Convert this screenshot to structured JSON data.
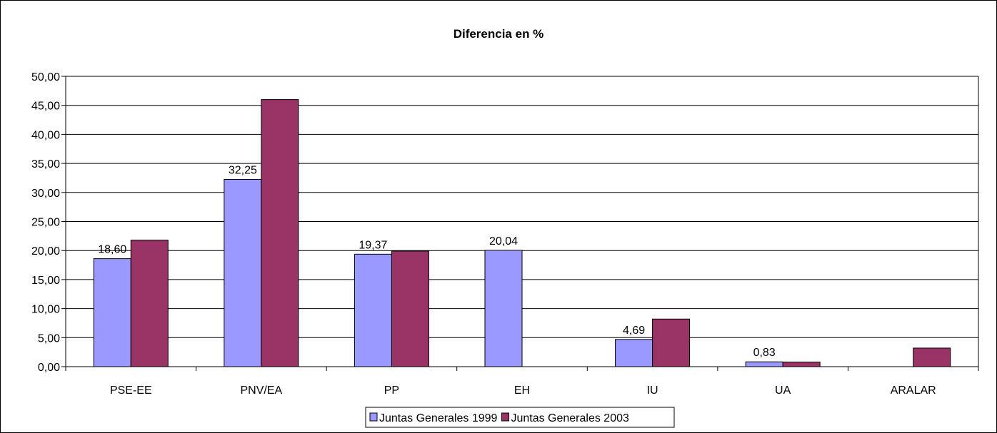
{
  "chart_data": {
    "type": "bar",
    "title": "Diferencia en %",
    "xlabel": "",
    "ylabel": "",
    "categories": [
      "PSE-EE",
      "PNV/EA",
      "PP",
      "EH",
      "IU",
      "UA",
      "ARALAR"
    ],
    "series": [
      {
        "name": "Juntas Generales 1999",
        "color": "#9999ff",
        "values": [
          18.6,
          32.25,
          19.37,
          20.04,
          4.69,
          0.83,
          null
        ],
        "labels": [
          "18,60",
          "32,25",
          "19,37",
          "20,04",
          "4,69",
          "0,83",
          ""
        ]
      },
      {
        "name": "Juntas Generales 2003",
        "color": "#993366",
        "values": [
          21.8,
          46.0,
          19.9,
          null,
          8.2,
          0.8,
          3.2
        ]
      }
    ],
    "ylim": [
      0,
      50
    ],
    "yticks": [
      "0,00",
      "5,00",
      "10,00",
      "15,00",
      "20,00",
      "25,00",
      "30,00",
      "35,00",
      "40,00",
      "45,00",
      "50,00"
    ],
    "grid": true,
    "legend": "bottom"
  }
}
